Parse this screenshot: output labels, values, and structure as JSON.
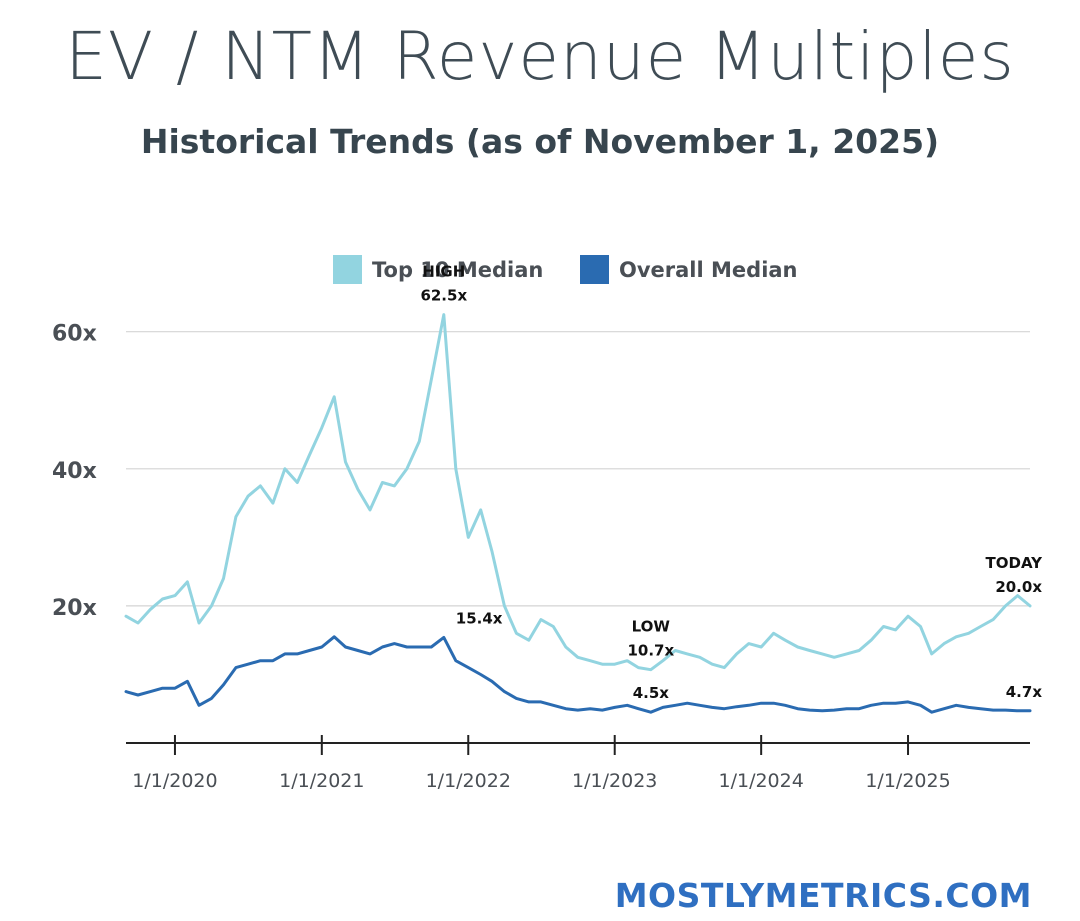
{
  "title": "EV / NTM Revenue Multiples",
  "subtitle": "Historical Trends (as of November 1, 2025)",
  "brand": "MOSTLYMETRICS.COM",
  "colors": {
    "top10": "#92d4e0",
    "overall": "#2a6bb1",
    "grid": "#d4d4d4",
    "axis": "#222222",
    "text": "#4a4f55"
  },
  "chart_data": {
    "type": "line",
    "ylim": [
      0,
      62
    ],
    "xlim": [
      "2019-09-01",
      "2025-11-01"
    ],
    "y_ticks": [
      {
        "value": 20,
        "label": "20x"
      },
      {
        "value": 40,
        "label": "40x"
      },
      {
        "value": 60,
        "label": "60x"
      }
    ],
    "x_ticks": [
      {
        "date": "2020-01-01",
        "label": "1/1/2020"
      },
      {
        "date": "2021-01-01",
        "label": "1/1/2021"
      },
      {
        "date": "2022-01-01",
        "label": "1/1/2022"
      },
      {
        "date": "2023-01-01",
        "label": "1/1/2023"
      },
      {
        "date": "2024-01-01",
        "label": "1/1/2024"
      },
      {
        "date": "2025-01-01",
        "label": "1/1/2025"
      }
    ],
    "grid": true,
    "legend_position": "top",
    "series": [
      {
        "name": "Top 10 Median",
        "points": [
          [
            "2019-09-01",
            18.5
          ],
          [
            "2019-10-01",
            17.5
          ],
          [
            "2019-11-01",
            19.5
          ],
          [
            "2019-12-01",
            21.0
          ],
          [
            "2020-01-01",
            21.5
          ],
          [
            "2020-02-01",
            23.5
          ],
          [
            "2020-03-01",
            17.5
          ],
          [
            "2020-04-01",
            20.0
          ],
          [
            "2020-05-01",
            24.0
          ],
          [
            "2020-06-01",
            33.0
          ],
          [
            "2020-07-01",
            36.0
          ],
          [
            "2020-08-01",
            37.5
          ],
          [
            "2020-09-01",
            35.0
          ],
          [
            "2020-10-01",
            40.0
          ],
          [
            "2020-11-01",
            38.0
          ],
          [
            "2020-12-01",
            42.0
          ],
          [
            "2021-01-01",
            46.0
          ],
          [
            "2021-02-01",
            50.5
          ],
          [
            "2021-03-01",
            41.0
          ],
          [
            "2021-04-01",
            37.0
          ],
          [
            "2021-05-01",
            34.0
          ],
          [
            "2021-06-01",
            38.0
          ],
          [
            "2021-07-01",
            37.5
          ],
          [
            "2021-08-01",
            40.0
          ],
          [
            "2021-09-01",
            44.0
          ],
          [
            "2021-10-01",
            53.0
          ],
          [
            "2021-11-01",
            62.5
          ],
          [
            "2021-12-01",
            40.0
          ],
          [
            "2022-01-01",
            30.0
          ],
          [
            "2022-02-01",
            34.0
          ],
          [
            "2022-03-01",
            28.0
          ],
          [
            "2022-04-01",
            20.0
          ],
          [
            "2022-05-01",
            16.0
          ],
          [
            "2022-06-01",
            15.0
          ],
          [
            "2022-07-01",
            18.0
          ],
          [
            "2022-08-01",
            17.0
          ],
          [
            "2022-09-01",
            14.0
          ],
          [
            "2022-10-01",
            12.5
          ],
          [
            "2022-11-01",
            12.0
          ],
          [
            "2022-12-01",
            11.5
          ],
          [
            "2023-01-01",
            11.5
          ],
          [
            "2023-02-01",
            12.0
          ],
          [
            "2023-03-01",
            11.0
          ],
          [
            "2023-04-01",
            10.7
          ],
          [
            "2023-05-01",
            12.0
          ],
          [
            "2023-06-01",
            13.5
          ],
          [
            "2023-07-01",
            13.0
          ],
          [
            "2023-08-01",
            12.5
          ],
          [
            "2023-09-01",
            11.5
          ],
          [
            "2023-10-01",
            11.0
          ],
          [
            "2023-11-01",
            13.0
          ],
          [
            "2023-12-01",
            14.5
          ],
          [
            "2024-01-01",
            14.0
          ],
          [
            "2024-02-01",
            16.0
          ],
          [
            "2024-03-01",
            15.0
          ],
          [
            "2024-04-01",
            14.0
          ],
          [
            "2024-05-01",
            13.5
          ],
          [
            "2024-06-01",
            13.0
          ],
          [
            "2024-07-01",
            12.5
          ],
          [
            "2024-08-01",
            13.0
          ],
          [
            "2024-09-01",
            13.5
          ],
          [
            "2024-10-01",
            15.0
          ],
          [
            "2024-11-01",
            17.0
          ],
          [
            "2024-12-01",
            16.5
          ],
          [
            "2025-01-01",
            18.5
          ],
          [
            "2025-02-01",
            17.0
          ],
          [
            "2025-03-01",
            13.0
          ],
          [
            "2025-04-01",
            14.5
          ],
          [
            "2025-05-01",
            15.5
          ],
          [
            "2025-06-01",
            16.0
          ],
          [
            "2025-07-01",
            17.0
          ],
          [
            "2025-08-01",
            18.0
          ],
          [
            "2025-09-01",
            20.0
          ],
          [
            "2025-10-01",
            21.5
          ],
          [
            "2025-11-01",
            20.0
          ]
        ]
      },
      {
        "name": "Overall Median",
        "points": [
          [
            "2019-09-01",
            7.5
          ],
          [
            "2019-10-01",
            7.0
          ],
          [
            "2019-11-01",
            7.5
          ],
          [
            "2019-12-01",
            8.0
          ],
          [
            "2020-01-01",
            8.0
          ],
          [
            "2020-02-01",
            9.0
          ],
          [
            "2020-03-01",
            5.5
          ],
          [
            "2020-04-01",
            6.5
          ],
          [
            "2020-05-01",
            8.5
          ],
          [
            "2020-06-01",
            11.0
          ],
          [
            "2020-07-01",
            11.5
          ],
          [
            "2020-08-01",
            12.0
          ],
          [
            "2020-09-01",
            12.0
          ],
          [
            "2020-10-01",
            13.0
          ],
          [
            "2020-11-01",
            13.0
          ],
          [
            "2020-12-01",
            13.5
          ],
          [
            "2021-01-01",
            14.0
          ],
          [
            "2021-02-01",
            15.5
          ],
          [
            "2021-03-01",
            14.0
          ],
          [
            "2021-04-01",
            13.5
          ],
          [
            "2021-05-01",
            13.0
          ],
          [
            "2021-06-01",
            14.0
          ],
          [
            "2021-07-01",
            14.5
          ],
          [
            "2021-08-01",
            14.0
          ],
          [
            "2021-09-01",
            14.0
          ],
          [
            "2021-10-01",
            14.0
          ],
          [
            "2021-11-01",
            15.4
          ],
          [
            "2021-12-01",
            12.0
          ],
          [
            "2022-01-01",
            11.0
          ],
          [
            "2022-02-01",
            10.0
          ],
          [
            "2022-03-01",
            9.0
          ],
          [
            "2022-04-01",
            7.5
          ],
          [
            "2022-05-01",
            6.5
          ],
          [
            "2022-06-01",
            6.0
          ],
          [
            "2022-07-01",
            6.0
          ],
          [
            "2022-08-01",
            5.5
          ],
          [
            "2022-09-01",
            5.0
          ],
          [
            "2022-10-01",
            4.8
          ],
          [
            "2022-11-01",
            5.0
          ],
          [
            "2022-12-01",
            4.8
          ],
          [
            "2023-01-01",
            5.2
          ],
          [
            "2023-02-01",
            5.5
          ],
          [
            "2023-03-01",
            5.0
          ],
          [
            "2023-04-01",
            4.5
          ],
          [
            "2023-05-01",
            5.2
          ],
          [
            "2023-06-01",
            5.5
          ],
          [
            "2023-07-01",
            5.8
          ],
          [
            "2023-08-01",
            5.5
          ],
          [
            "2023-09-01",
            5.2
          ],
          [
            "2023-10-01",
            5.0
          ],
          [
            "2023-11-01",
            5.3
          ],
          [
            "2023-12-01",
            5.5
          ],
          [
            "2024-01-01",
            5.8
          ],
          [
            "2024-02-01",
            5.8
          ],
          [
            "2024-03-01",
            5.5
          ],
          [
            "2024-04-01",
            5.0
          ],
          [
            "2024-05-01",
            4.8
          ],
          [
            "2024-06-01",
            4.7
          ],
          [
            "2024-07-01",
            4.8
          ],
          [
            "2024-08-01",
            5.0
          ],
          [
            "2024-09-01",
            5.0
          ],
          [
            "2024-10-01",
            5.5
          ],
          [
            "2024-11-01",
            5.8
          ],
          [
            "2024-12-01",
            5.8
          ],
          [
            "2025-01-01",
            6.0
          ],
          [
            "2025-02-01",
            5.5
          ],
          [
            "2025-03-01",
            4.5
          ],
          [
            "2025-04-01",
            5.0
          ],
          [
            "2025-05-01",
            5.5
          ],
          [
            "2025-06-01",
            5.2
          ],
          [
            "2025-07-01",
            5.0
          ],
          [
            "2025-08-01",
            4.8
          ],
          [
            "2025-09-01",
            4.8
          ],
          [
            "2025-10-01",
            4.7
          ],
          [
            "2025-11-01",
            4.7
          ]
        ]
      }
    ],
    "annotations": [
      {
        "lines": [
          "HIGH",
          "62.5x"
        ],
        "date": "2021-11-01",
        "value": 62.5,
        "anchor": "above"
      },
      {
        "lines": [
          "15.4x"
        ],
        "date": "2021-11-01",
        "value": 15.4,
        "anchor": "above-right"
      },
      {
        "lines": [
          "LOW",
          "10.7x"
        ],
        "date": "2023-04-01",
        "value": 10.7,
        "anchor": "above"
      },
      {
        "lines": [
          "4.5x"
        ],
        "date": "2023-04-01",
        "value": 4.5,
        "anchor": "above"
      },
      {
        "lines": [
          "TODAY",
          "20.0x"
        ],
        "date": "2025-11-01",
        "value": 20.0,
        "anchor": "above-left"
      },
      {
        "lines": [
          "4.7x"
        ],
        "date": "2025-11-01",
        "value": 4.7,
        "anchor": "above-left"
      }
    ]
  }
}
